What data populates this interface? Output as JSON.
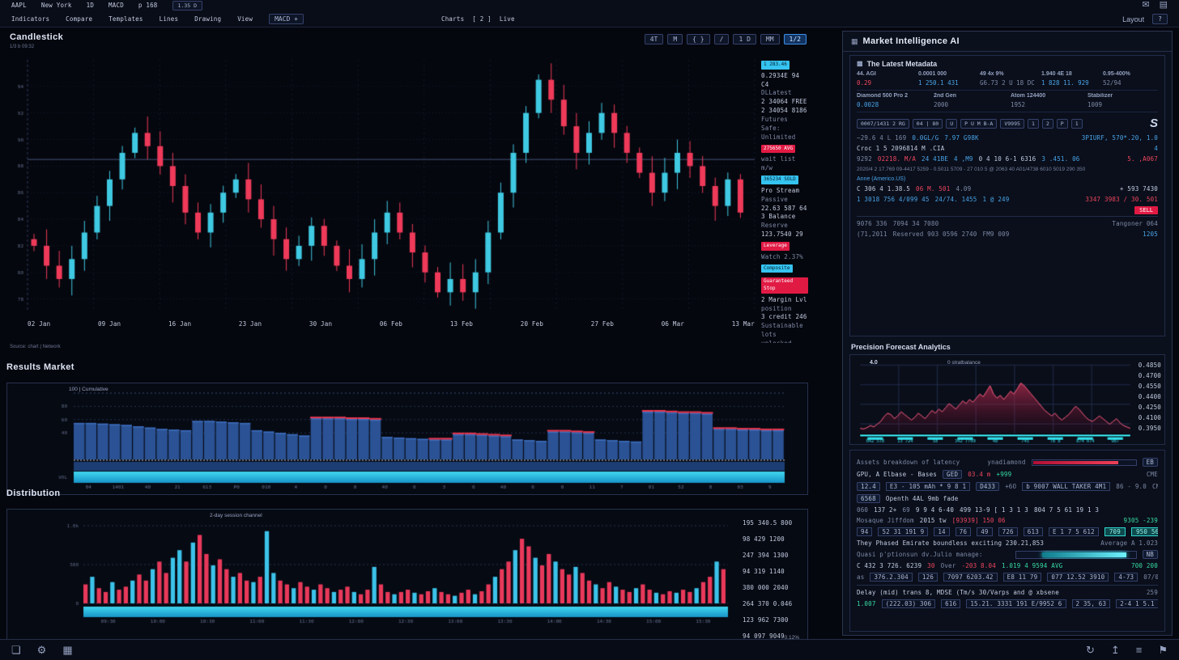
{
  "colors": {
    "red": "#ef3a5a",
    "cyan": "#3cc3ea",
    "blue": "#4aa3e8",
    "green": "#38dba4",
    "teal": "#3ae0d8",
    "bar_blue": "#2b5294",
    "band_cyan": "#38c6f0"
  },
  "topbar": {
    "row1": [
      "AAPL",
      "New York",
      "1D",
      "MACD",
      "p 168"
    ],
    "row1_chip": "1.35 D",
    "row1_icons": [
      "mail",
      "archive"
    ],
    "row2": [
      "Indicators",
      "Compare",
      "Templates",
      "Lines",
      "Drawing",
      "View"
    ],
    "row2_chip": "MACD +",
    "center": [
      "Charts",
      "[ 2 ]",
      "Live"
    ],
    "layout_label": "Layout",
    "help_chip": "?"
  },
  "main_chart": {
    "title": "Candlestick",
    "subtitle": "1/3 b 09:32",
    "toolbar": [
      "4T",
      "M",
      "{ }",
      "/",
      "1 D",
      "MM"
    ],
    "toolbar_accent": "1/2",
    "footer": "Source: chart  |  Network",
    "alerts": [
      {
        "t": "1 283.46",
        "k": "chip-cyan"
      },
      {
        "t": "0.2934E 94 C4",
        "k": "t"
      },
      {
        "t": "DLLatest",
        "k": "m"
      },
      {
        "t": "2 34064 FREE",
        "k": "t"
      },
      {
        "t": "2 34054 8186",
        "k": "t"
      },
      {
        "t": "Futures",
        "k": "m"
      },
      {
        "t": "Safe: Unlimited",
        "k": "m"
      },
      {
        "t": "275650 AVG",
        "k": "chip-red"
      },
      {
        "t": "wait list m/w",
        "k": "m"
      },
      {
        "t": "365234 SOLD",
        "k": "chip-cyan"
      },
      {
        "t": "Pro Stream",
        "k": "t"
      },
      {
        "t": "Passive",
        "k": "m"
      },
      {
        "t": "22.63 587 64",
        "k": "t"
      },
      {
        "t": "3 Balance",
        "k": "t"
      },
      {
        "t": "Reserve",
        "k": "m"
      },
      {
        "t": "123.7540 29",
        "k": "t"
      },
      {
        "t": "Leverage",
        "k": "chip-red"
      },
      {
        "t": "Watch 2.37%",
        "k": "m"
      },
      {
        "t": "Composite",
        "k": "chip-cyan"
      },
      {
        "t": "Guaranteed Stop",
        "k": "chip-red"
      },
      {
        "t": "2 Margin Lvl",
        "k": "t"
      },
      {
        "t": "position",
        "k": "m"
      },
      {
        "t": "3 credit 246",
        "k": "t"
      },
      {
        "t": "Sustainable lots",
        "k": "m"
      },
      {
        "t": "unlocked reserve",
        "k": "m"
      }
    ]
  },
  "chart_data": [
    {
      "type": "candlestick",
      "title": "Candlestick",
      "open0": 82.5,
      "closes": [
        82,
        80.5,
        79.5,
        81,
        83,
        85,
        87,
        89,
        90.5,
        89.5,
        88,
        86.5,
        84.5,
        83,
        84.5,
        86,
        87,
        85.5,
        84,
        82.5,
        81,
        82,
        83.5,
        82,
        80.5,
        79.5,
        81,
        83,
        84.5,
        83,
        81.5,
        80,
        78.5,
        79.5,
        78.5,
        80,
        83,
        86,
        89,
        92,
        94.5,
        93,
        91,
        89,
        90.5,
        92,
        90.5,
        89,
        87.5,
        86,
        87.5,
        89,
        88,
        86.5,
        85,
        87,
        84.5
      ],
      "ylim": [
        77,
        96
      ],
      "yticks": [
        94,
        92,
        90,
        88,
        86,
        84,
        82,
        80,
        78
      ],
      "price_line": 88.5,
      "xlabels": [
        "02 Jan",
        "09 Jan",
        "16 Jan",
        "23 Jan",
        "30 Jan",
        "06 Feb",
        "13 Feb",
        "20 Feb",
        "27 Feb",
        "06 Mar",
        "13 Mar"
      ],
      "color_up": "#3fc9e2",
      "color_down": "#ef3a5a"
    },
    {
      "type": "bar",
      "title": "Results Market",
      "legend": "100 | Cumulative",
      "values": [
        55,
        55,
        54,
        53,
        52,
        50,
        48,
        46,
        45,
        44,
        58,
        58,
        57,
        56,
        55,
        44,
        42,
        40,
        38,
        36,
        62,
        62,
        62,
        61,
        61,
        60,
        34,
        33,
        32,
        31,
        30,
        30,
        38,
        38,
        37,
        36,
        35,
        30,
        29,
        28,
        42,
        42,
        41,
        40,
        30,
        29,
        28,
        27,
        72,
        72,
        71,
        70,
        70,
        69,
        46,
        46,
        45,
        45,
        44,
        44
      ],
      "red_mask": [
        0,
        0,
        0,
        0,
        0,
        0,
        0,
        0,
        0,
        0,
        0,
        0,
        0,
        0,
        0,
        0,
        0,
        0,
        0,
        0,
        1,
        1,
        1,
        1,
        1,
        1,
        0,
        0,
        0,
        0,
        1,
        1,
        1,
        1,
        1,
        1,
        1,
        0,
        0,
        0,
        1,
        1,
        1,
        1,
        0,
        0,
        0,
        0,
        1,
        1,
        1,
        1,
        1,
        1,
        1,
        1,
        1,
        1,
        1,
        1
      ],
      "ylim": [
        0,
        100
      ],
      "yticks": [
        80,
        60,
        40
      ],
      "band_label": "VOL",
      "xticks": [
        "04",
        "1401",
        "40",
        "21",
        "613",
        "P0",
        "010",
        "4",
        "0",
        "0",
        "40",
        "0",
        "3",
        "0",
        "40",
        "0",
        "0",
        "11",
        "7",
        "01",
        "52",
        "8",
        "03",
        "9"
      ]
    },
    {
      "type": "bar",
      "title": "Distribution",
      "legend": "2-day session channel",
      "values": [
        25,
        35,
        20,
        15,
        28,
        18,
        22,
        30,
        38,
        30,
        45,
        55,
        40,
        60,
        70,
        55,
        80,
        90,
        65,
        50,
        58,
        45,
        35,
        40,
        30,
        28,
        35,
        95,
        40,
        30,
        25,
        20,
        28,
        22,
        18,
        25,
        20,
        15,
        18,
        22,
        15,
        12,
        18,
        48,
        25,
        15,
        12,
        15,
        18,
        14,
        12,
        16,
        20,
        15,
        12,
        10,
        14,
        18,
        12,
        16,
        25,
        35,
        45,
        55,
        70,
        85,
        75,
        60,
        50,
        65,
        55,
        45,
        38,
        48,
        40,
        30,
        25,
        20,
        28,
        22,
        18,
        15,
        20,
        25,
        18,
        14,
        12,
        16,
        14,
        18,
        15,
        20,
        28,
        35,
        55,
        45
      ],
      "colors": "rcrrcrrcrrcrrccrcrrcrrcrrcrccrrcrrcrrcrrcrrcrrcrrcrrcrrcrrcrrcrrcrrcrrcrrcrrcrrcrrcrrcrrcrrcrrcr",
      "yticks": [
        "1.0k",
        "500",
        "0"
      ],
      "xlabels": [
        "09:30",
        "10:00",
        "10:30",
        "11:00",
        "11:30",
        "12:00",
        "12:30",
        "13:00",
        "13:30",
        "14:00",
        "14:30",
        "15:00",
        "15:30"
      ],
      "right_labels": [
        "195 340.5 800",
        "98 429 1200",
        "247 394 1300",
        "94 319 1140",
        "380 000 2040",
        "264 370 0.046",
        "123 962 7300",
        "94 097 9049"
      ],
      "corner": "0.12%"
    },
    {
      "type": "area",
      "title": "Precision Forecast Analytics",
      "values": [
        8,
        7,
        9,
        12,
        10,
        14,
        18,
        25,
        30,
        28,
        22,
        26,
        32,
        28,
        24,
        20,
        24,
        30,
        26,
        22,
        28,
        34,
        30,
        36,
        32,
        38,
        44,
        40,
        36,
        42,
        48,
        44,
        50,
        46,
        52,
        58,
        54,
        62,
        70,
        58,
        52,
        56,
        50,
        56,
        62,
        58,
        66,
        74,
        70,
        64,
        58,
        52,
        46,
        40,
        34,
        30,
        26,
        30,
        24,
        20,
        24,
        28,
        34,
        40,
        36,
        30,
        24,
        20,
        18,
        22,
        26,
        22,
        18,
        14,
        18,
        22,
        16,
        12,
        10,
        8
      ],
      "ylim": [
        0,
        100
      ],
      "inner_left": "4.0",
      "inner_title": "0 stratbalance",
      "right_labels": [
        "0.4850",
        "0.4700",
        "0.4550",
        "0.4400",
        "0.4250",
        "0.4100",
        "0.3950"
      ],
      "x_ticks": [
        "042 578",
        "13 724",
        "58",
        "342 7709",
        "48",
        "745",
        "78 8",
        "874 074",
        "987"
      ]
    }
  ],
  "right_panel": {
    "title": "Market Intelligence AI",
    "card1": {
      "heading": "The Latest Metadata",
      "stats1": [
        {
          "l": "44. AGI",
          "v": "0.29",
          "vc": "red"
        },
        {
          "l": "0.0001 000",
          "v": "1 250.1 431",
          "vc": "blue"
        },
        {
          "l": "49 4x 9%",
          "v": "G6.73 2 U 18 DC 459",
          "vc": "mut"
        },
        {
          "l": "1.940 4E 18",
          "v": "1 828 11. 929",
          "vc": "blue"
        },
        {
          "l": "0.95-400%",
          "v": "52/94",
          "vc": "mut"
        }
      ],
      "stats2": [
        {
          "l": "Diamond 500 Pro 2",
          "v": "0.0028",
          "vc": "blue"
        },
        {
          "l": "2nd Gen",
          "v": "2000",
          "vc": "mut"
        },
        {
          "l": "Atom 124400",
          "v": "1952",
          "vc": "mut"
        },
        {
          "l": "Stabilizer",
          "v": "1009",
          "vc": "mut"
        }
      ],
      "chips": [
        "0007/1431 2 RG",
        "04 | 80",
        "U",
        "P U M B-A",
        "V9995",
        "1",
        "2",
        "P",
        "1"
      ],
      "logo": "S",
      "rows": [
        [
          {
            "t": "~29.6 4 L 169",
            "c": "mut"
          },
          {
            "t": "0.0GL/G",
            "c": "blue"
          },
          {
            "t": "7.97 G98K",
            "c": "blue"
          },
          {
            "t": "3PIURF, 570*.20, 1.0",
            "c": "blue",
            "right": true
          }
        ],
        [
          {
            "t": "Croc 1 5 2096814 M .CIA",
            "c": "txt"
          },
          {
            "t": "4",
            "c": "blue",
            "right": true
          }
        ],
        [
          {
            "t": "9292",
            "c": "mut"
          },
          {
            "t": "02218. M/A",
            "c": "red"
          },
          {
            "t": "24 41BE",
            "c": "blue"
          },
          {
            "t": "4 ,M9",
            "c": "blue"
          },
          {
            "t": "0 4 10 6-1 6316",
            "c": "txt"
          },
          {
            "t": "3 .451. 06",
            "c": "blue"
          },
          {
            "t": "5. ,A067",
            "c": "red",
            "right": true
          }
        ]
      ],
      "para": "2020/4 2 17.769 09-4417 5259 - 0.5011 5709 - 27 010 5 @ 2063 40 A01/4738 6010 5019 290 350",
      "link": "Anne (Americo.US)",
      "rows2": [
        [
          {
            "t": "C 306 4 1.38.5",
            "c": "txt"
          },
          {
            "t": "06 M. 501",
            "c": "red"
          },
          {
            "t": "4.09",
            "c": "mut"
          },
          {
            "t": "+ 593 7430",
            "c": "txt",
            "right": true
          }
        ],
        [
          {
            "t": "1 3018 756 4/099 45",
            "c": "blue"
          },
          {
            "t": "24/74. 1455",
            "c": "blue"
          },
          {
            "t": "1 @ 249",
            "c": "blue"
          },
          {
            "t": "3347 3983 / 30. 501",
            "c": "red",
            "right": true
          }
        ]
      ],
      "sell": "SELL",
      "rows3": [
        [
          {
            "t": "9076 336",
            "c": "mut"
          },
          {
            "t": "7094 34 7080",
            "c": "mut"
          },
          {
            "t": "Tangoner 064",
            "c": "mut",
            "right": true
          }
        ],
        [
          {
            "t": "(71,2011",
            "c": "mut"
          },
          {
            "t": "Reserved 903 0596 2740",
            "c": "mut"
          },
          {
            "t": "FM9 009",
            "c": "mut"
          },
          {
            "t": "1205",
            "c": "blue",
            "right": true
          }
        ]
      ]
    },
    "card2": {
      "heading": "Precision Forecast Analytics"
    },
    "card3": {
      "rows": [
        [
          {
            "t": "Assets breakdown of latency",
            "c": "mut"
          },
          {
            "t": "ynadiamond",
            "c": "mut",
            "right": true
          },
          {
            "k": "rbar"
          },
          {
            "t": "EB",
            "k": "chip"
          }
        ],
        [
          {
            "t": "GPU, A Elbase - Bases",
            "c": "txt"
          },
          {
            "t": "GED",
            "k": "chip"
          },
          {
            "t": "03.4 m",
            "c": "red"
          },
          {
            "t": "+999",
            "c": "green"
          },
          {
            "t": "CME",
            "c": "mut",
            "right": true
          }
        ],
        [
          {
            "t": "12.4",
            "k": "chip"
          },
          {
            "t": "E3 - 105 mAh * 9 8 1",
            "k": "box"
          },
          {
            "t": "D433",
            "k": "chip"
          },
          {
            "t": "+6O",
            "c": "mut"
          },
          {
            "t": "b 9007 WALL TAKER 4M1",
            "k": "box"
          },
          {
            "t": "86 - 9.0",
            "c": "mut"
          },
          {
            "t": "CME",
            "c": "mut",
            "right": true
          }
        ],
        [
          {
            "t": "6568",
            "k": "chip"
          },
          {
            "t": "Openth 4AL 9mb fade",
            "c": "txt"
          }
        ],
        [
          {
            "t": "060",
            "c": "mut"
          },
          {
            "t": "137 2+",
            "c": "txt"
          },
          {
            "t": "69",
            "c": "mut"
          },
          {
            "t": "9 9 4 6-40",
            "c": "txt"
          },
          {
            "t": "499 13-9 [ 1 3 1 3",
            "c": "txt"
          },
          {
            "t": "804 7 5 61 19 1 3",
            "c": "txt"
          }
        ],
        [
          {
            "t": "Mosaque Jiffdom",
            "c": "mut"
          },
          {
            "t": "2015 tw",
            "c": "txt"
          },
          {
            "t": "[93939] 150 06",
            "c": "red"
          },
          {
            "t": "9305 -239",
            "c": "green",
            "right": true
          }
        ],
        [
          {
            "t": "94",
            "k": "box"
          },
          {
            "t": "52 31 191 9",
            "k": "box"
          },
          {
            "t": "14",
            "k": "box"
          },
          {
            "t": "76",
            "k": "box"
          },
          {
            "t": "49",
            "k": "box"
          },
          {
            "t": "726",
            "k": "box"
          },
          {
            "t": "613",
            "k": "box"
          },
          {
            "t": "E 1 7 5 612",
            "k": "box"
          },
          {
            "t": "709",
            "k": "chip-teal"
          },
          {
            "t": "950 56.",
            "k": "chip-teal"
          },
          {
            "t": "3010",
            "k": "chip-teal"
          }
        ],
        [
          {
            "t": "They Phased Emirate boundless exciting 230.21,853",
            "c": "txt"
          },
          {
            "t": "Average A 1.023",
            "c": "mut",
            "right": true
          }
        ],
        [
          {
            "t": "Quasi p'ptionsun dv.Julio manage:",
            "c": "mut"
          },
          {
            "k": "tbar",
            "right": true
          },
          {
            "t": "NB",
            "k": "chip"
          }
        ],
        [
          {
            "t": "C 432 3 726. 6239",
            "c": "txt"
          },
          {
            "t": "30",
            "c": "red"
          },
          {
            "t": "Over",
            "c": "mut"
          },
          {
            "t": "-203 8.04",
            "c": "red"
          },
          {
            "t": "1.019 4 9594 AVG",
            "c": "green"
          },
          {
            "t": "700 200",
            "c": "green",
            "right": true
          }
        ],
        [
          {
            "t": "as",
            "c": "mut"
          },
          {
            "t": "376.2.304",
            "k": "box"
          },
          {
            "t": "126",
            "k": "box"
          },
          {
            "t": "7097 6203.42",
            "k": "box"
          },
          {
            "t": "E8 11 79",
            "k": "box"
          },
          {
            "t": "077 12.52 3910",
            "k": "box"
          },
          {
            "t": "4-73",
            "k": "box",
            "c": "green"
          },
          {
            "t": "07/0",
            "c": "mut",
            "right": true
          }
        ],
        [
          {
            "k": "hr"
          }
        ],
        [
          {
            "t": "Delay (mid) trans 8, MDSE (Tm/s 30/Varps and @ xbsene",
            "c": "txt"
          },
          {
            "t": "259",
            "c": "mut",
            "right": true
          }
        ],
        [
          {
            "t": "1.007",
            "c": "green"
          },
          {
            "t": "(222.03) 306",
            "k": "box"
          },
          {
            "t": "616",
            "k": "box"
          },
          {
            "t": "15.21. 3331 191 E/9952 6",
            "k": "box"
          },
          {
            "t": "2 35, 63",
            "k": "box"
          },
          {
            "t": "2-4 1 5.1",
            "k": "box"
          }
        ]
      ]
    }
  },
  "statusbar": {
    "icons_left": [
      "bookmark",
      "gear",
      "grid"
    ],
    "icons_right": [
      "redo",
      "upload",
      "list",
      "flag"
    ]
  }
}
